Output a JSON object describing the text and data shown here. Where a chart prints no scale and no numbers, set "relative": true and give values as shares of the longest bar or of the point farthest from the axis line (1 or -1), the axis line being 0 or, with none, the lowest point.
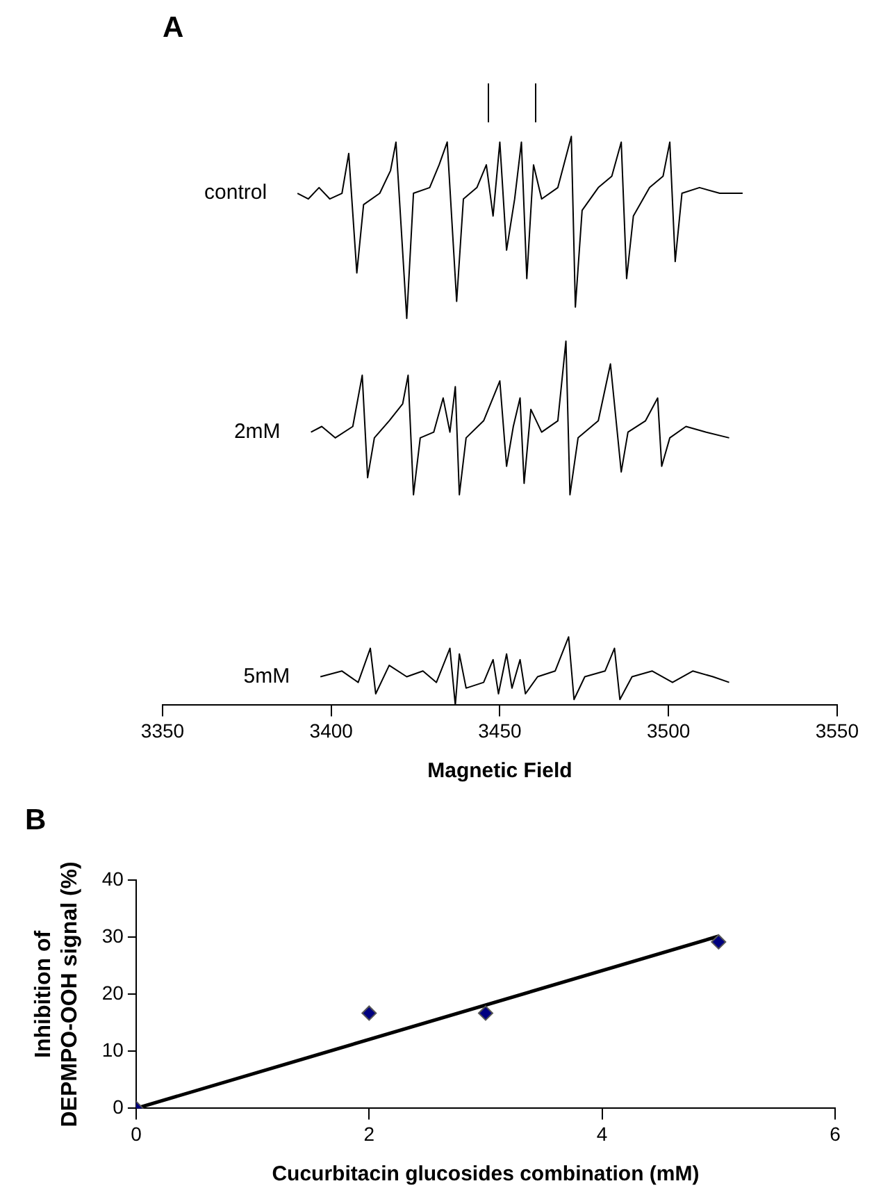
{
  "chart_data": [
    {
      "type": "line",
      "title": "A",
      "xlabel": "Magnetic Field",
      "relative": true,
      "xlim": [
        3350,
        3550
      ],
      "xticks": [
        3350,
        3400,
        3450,
        3500,
        3550
      ],
      "grid": false,
      "legend": false,
      "marker": "none",
      "line_style": "solid",
      "series": [
        {
          "name": "control",
          "color": "#000000",
          "x": [
            3390,
            3393.2,
            3396.4,
            3399.6,
            3403.2,
            3405.2,
            3407.6,
            3409.6,
            3414.4,
            3417.6,
            3419.2,
            3422.4,
            3424.4,
            3429.2,
            3432,
            3434.4,
            3437.2,
            3439.2,
            3443.2,
            3446,
            3448,
            3450,
            3452,
            3454.4,
            3456.4,
            3458,
            3460,
            3462.4,
            3467.2,
            3471.2,
            3472.4,
            3474.4,
            3479.2,
            3483.2,
            3486,
            3487.6,
            3489.6,
            3494.4,
            3498.4,
            3500.4,
            3502,
            3504,
            3509.2,
            3515.2,
            3522
          ],
          "values": [
            0.9,
            0.89,
            0.91,
            0.89,
            0.9,
            0.97,
            0.76,
            0.88,
            0.9,
            0.94,
            0.99,
            0.68,
            0.9,
            0.91,
            0.95,
            0.99,
            0.71,
            0.89,
            0.91,
            0.95,
            0.86,
            0.99,
            0.8,
            0.89,
            0.99,
            0.75,
            0.95,
            0.89,
            0.91,
            1.0,
            0.7,
            0.87,
            0.91,
            0.93,
            0.99,
            0.75,
            0.86,
            0.91,
            0.93,
            0.99,
            0.78,
            0.9,
            0.91,
            0.9,
            0.9
          ]
        },
        {
          "name": "2mM",
          "color": "#000000",
          "x": [
            3394,
            3397.2,
            3401.2,
            3406.4,
            3409.2,
            3410.8,
            3412.8,
            3417.2,
            3421.2,
            3422.8,
            3424.4,
            3426.4,
            3430.4,
            3433.2,
            3435.2,
            3436.8,
            3438,
            3440,
            3445.2,
            3450,
            3452,
            3454,
            3456,
            3457.2,
            3459.2,
            3462.4,
            3467.2,
            3469.6,
            3470.8,
            3473.2,
            3479.2,
            3482.8,
            3486,
            3488,
            3493.2,
            3496.8,
            3498,
            3500.4,
            3505.2,
            3511.2,
            3518
          ],
          "values": [
            0.48,
            0.49,
            0.47,
            0.49,
            0.58,
            0.4,
            0.47,
            0.5,
            0.53,
            0.58,
            0.37,
            0.47,
            0.48,
            0.54,
            0.48,
            0.56,
            0.37,
            0.47,
            0.5,
            0.57,
            0.42,
            0.49,
            0.54,
            0.39,
            0.52,
            0.48,
            0.5,
            0.64,
            0.37,
            0.47,
            0.5,
            0.6,
            0.41,
            0.48,
            0.5,
            0.54,
            0.42,
            0.47,
            0.49,
            0.48,
            0.47
          ]
        },
        {
          "name": "5mM",
          "color": "#000000",
          "x": [
            3396.8,
            3403.2,
            3408,
            3411.6,
            3413.2,
            3417.2,
            3422.4,
            3427.2,
            3431.2,
            3435.2,
            3436.8,
            3438,
            3440,
            3445.2,
            3448,
            3449.6,
            3452,
            3453.6,
            3456,
            3457.6,
            3461.2,
            3466.4,
            3470.4,
            3472,
            3475.2,
            3481.2,
            3484,
            3485.6,
            3489.2,
            3495.2,
            3501.2,
            3507.2,
            3513.2,
            3518
          ],
          "values": [
            0.05,
            0.06,
            0.04,
            0.1,
            0.02,
            0.07,
            0.05,
            0.06,
            0.04,
            0.1,
            0.0,
            0.09,
            0.03,
            0.04,
            0.08,
            0.02,
            0.09,
            0.03,
            0.08,
            0.02,
            0.05,
            0.06,
            0.12,
            0.01,
            0.05,
            0.06,
            0.1,
            0.01,
            0.05,
            0.06,
            0.04,
            0.06,
            0.05,
            0.04
          ]
        }
      ]
    },
    {
      "type": "scatter",
      "title": "B",
      "xlabel": "Cucurbitacin glucosides combination (mM)",
      "ylabel": "Inhibition of\nDEPMPO-OOH signal (%)",
      "xlim": [
        0,
        6
      ],
      "xticks": [
        0,
        2,
        4,
        6
      ],
      "ylim": [
        0,
        40
      ],
      "yticks": [
        0,
        10,
        20,
        30,
        40
      ],
      "grid": false,
      "legend": false,
      "series": [
        {
          "type": "scatter",
          "color": "#000080",
          "marker": "diamond",
          "x": [
            0,
            2,
            3,
            5
          ],
          "values": [
            0,
            16.7,
            16.7,
            29.2
          ]
        },
        {
          "type": "line",
          "color": "#000000",
          "marker": "none",
          "line_style": "solid",
          "x": [
            0,
            5
          ],
          "values": [
            0,
            30.2
          ]
        }
      ]
    }
  ]
}
